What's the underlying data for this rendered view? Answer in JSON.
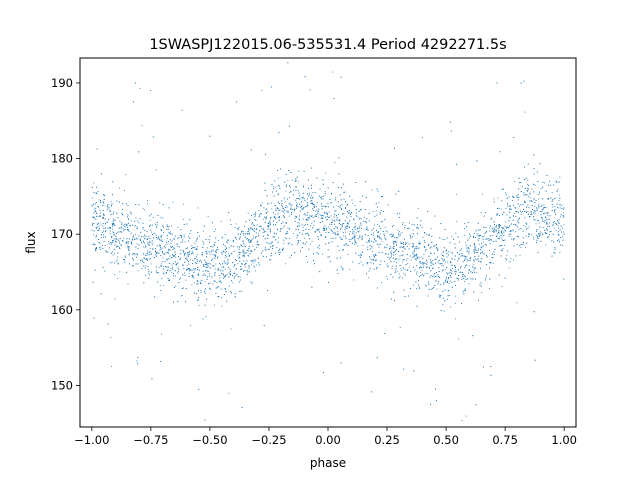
{
  "chart_data": {
    "type": "scatter",
    "title": "1SWASPJ122015.06-535531.4 Period 4292271.5s",
    "xlabel": "phase",
    "ylabel": "flux",
    "xlim": [
      -1.05,
      1.05
    ],
    "ylim": [
      144.5,
      193.3
    ],
    "x_ticks": [
      -1.0,
      -0.75,
      -0.5,
      -0.25,
      0.0,
      0.25,
      0.5,
      0.75,
      1.0
    ],
    "x_tick_labels": [
      "−1.00",
      "−0.75",
      "−0.50",
      "−0.25",
      "0.00",
      "0.25",
      "0.50",
      "0.75",
      "1.00"
    ],
    "y_ticks": [
      150,
      160,
      170,
      180,
      190
    ],
    "y_tick_labels": [
      "150",
      "160",
      "170",
      "180",
      "190"
    ],
    "grid": false,
    "legend": "none",
    "marker_color": "#1f77b4",
    "series": [
      {
        "phase_profile": {
          "x": [
            -1.0,
            -0.95,
            -0.9,
            -0.85,
            -0.8,
            -0.75,
            -0.7,
            -0.65,
            -0.6,
            -0.55,
            -0.5,
            -0.45,
            -0.4,
            -0.35,
            -0.3,
            -0.25,
            -0.2,
            -0.15,
            -0.1,
            -0.05,
            0.0,
            0.05,
            0.1,
            0.15,
            0.2,
            0.25,
            0.3,
            0.35,
            0.4,
            0.45,
            0.5,
            0.55,
            0.6,
            0.65,
            0.7,
            0.75,
            0.8,
            0.85,
            0.9,
            0.95,
            1.0
          ],
          "y_mean": [
            172.0,
            171.0,
            170.0,
            169.5,
            169.0,
            168.5,
            168.0,
            167.5,
            167.0,
            166.0,
            165.5,
            165.5,
            166.5,
            168.0,
            169.5,
            171.0,
            172.5,
            173.0,
            172.5,
            172.0,
            172.0,
            171.0,
            170.0,
            169.5,
            169.0,
            168.5,
            168.0,
            167.5,
            167.0,
            166.0,
            165.5,
            165.5,
            166.5,
            168.0,
            169.5,
            171.0,
            172.5,
            173.0,
            172.5,
            172.0,
            172.0
          ],
          "y_scatter": 2.5
        }
      }
    ]
  }
}
